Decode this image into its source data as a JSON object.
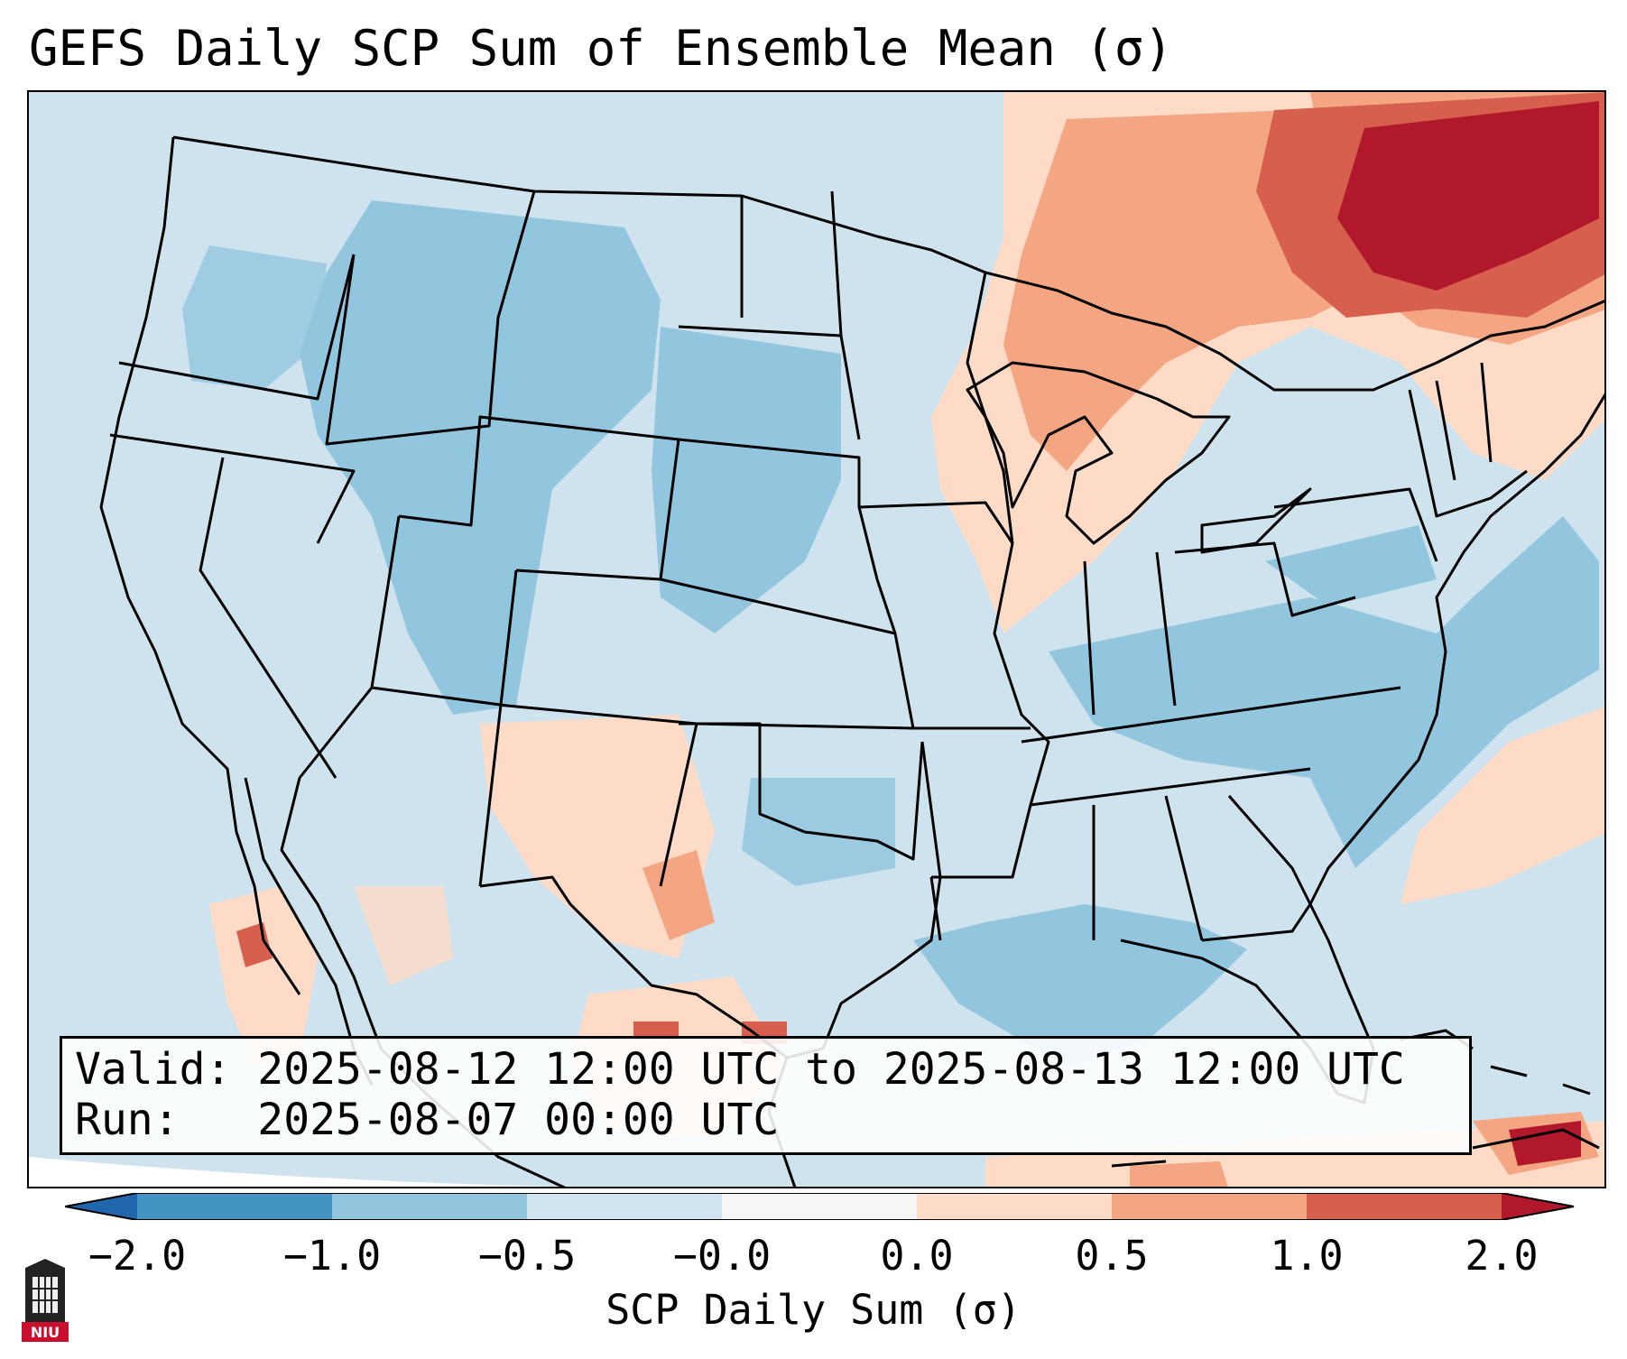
{
  "title": "GEFS Daily SCP Sum of Ensemble Mean (σ)",
  "info": {
    "valid_label": "Valid:",
    "valid_value": "2025-08-12 12:00 UTC to 2025-08-13 12:00 UTC",
    "run_label": "Run:",
    "run_value": "2025-08-07 00:00 UTC"
  },
  "colorbar": {
    "label": "SCP Daily Sum (σ)",
    "ticks": [
      "−2.0",
      "−1.0",
      "−0.5",
      "−0.0",
      "0.0",
      "0.5",
      "1.0",
      "2.0"
    ],
    "colors": [
      "#4393c3",
      "#92c5de",
      "#d1e5f0",
      "#f7f7f7",
      "#fddbc7",
      "#f4a582",
      "#d6604d"
    ],
    "under_color": "#2166ac",
    "over_color": "#b2182b"
  },
  "map": {
    "region": "Contiguous United States",
    "ocean_color": "#cfe3ee",
    "land_color": "#cfe3ee",
    "border_color": "#000000"
  },
  "logo": {
    "text": "NIU",
    "color": "#c8102e"
  }
}
